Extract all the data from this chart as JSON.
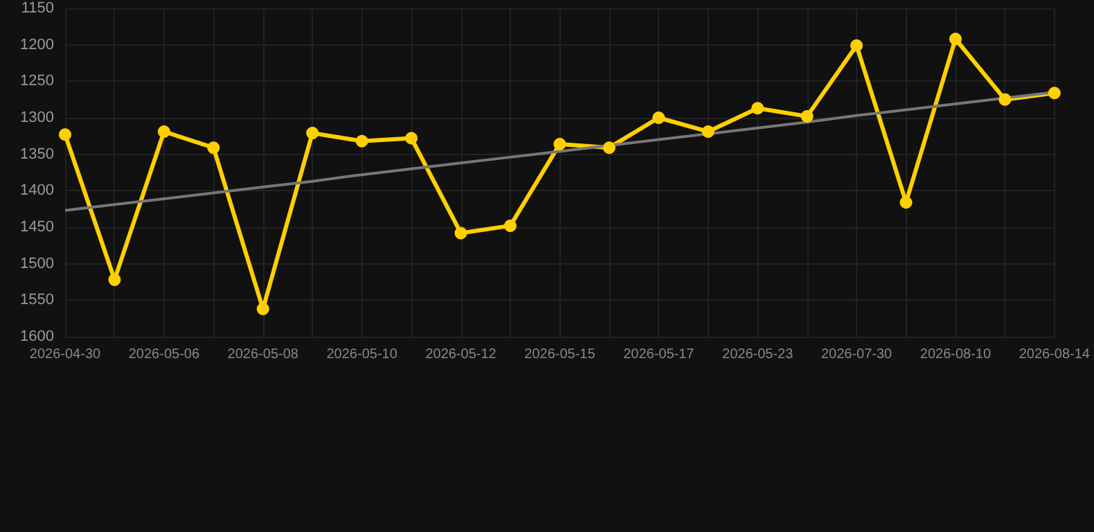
{
  "chart_data": {
    "type": "line",
    "categories": [
      "2026-04-30",
      null,
      "2026-05-06",
      null,
      "2026-05-08",
      null,
      "2026-05-10",
      null,
      "2026-05-12",
      null,
      "2026-05-15",
      null,
      "2026-05-17",
      null,
      "2026-05-23",
      null,
      "2026-07-30",
      null,
      "2026-08-10",
      null,
      "2026-08-14"
    ],
    "series": [
      {
        "color": "#ffd000",
        "marker": "circle",
        "values": [
          1323,
          1522,
          1319,
          1341,
          1562,
          1321,
          1332,
          1328,
          1458,
          1448,
          1336,
          1341,
          1300,
          1319,
          1287,
          1298,
          1201,
          1416,
          1192,
          1275,
          1266
        ]
      },
      {
        "color": "#777777",
        "marker": "none",
        "values": [
          1427,
          1419,
          1411,
          1403,
          1395,
          1387,
          1378,
          1370,
          1362,
          1354,
          1346,
          1338,
          1330,
          1322,
          1314,
          1306,
          1297,
          1289,
          1281,
          1273,
          1265
        ]
      }
    ],
    "ylim": [
      1600,
      1150
    ],
    "yticks": [
      1150,
      1200,
      1250,
      1300,
      1350,
      1400,
      1450,
      1500,
      1550,
      1600
    ],
    "grid": true
  }
}
